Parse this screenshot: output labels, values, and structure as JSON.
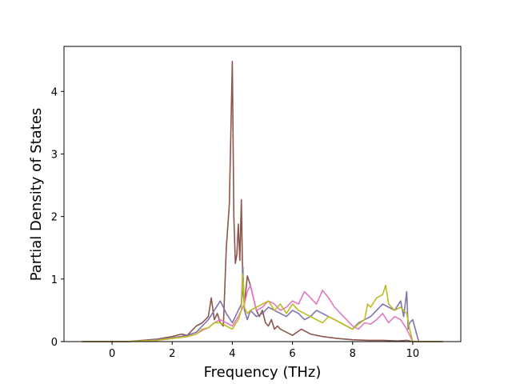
{
  "chart_data": {
    "type": "line",
    "title": "",
    "xlabel": "Frequency (THz)",
    "ylabel": "Partial Density of States",
    "xlim": [
      -1.6,
      11.6
    ],
    "ylim": [
      0,
      4.72
    ],
    "xticks": [
      0,
      2,
      4,
      6,
      8,
      10
    ],
    "yticks": [
      0,
      1,
      2,
      3,
      4
    ],
    "grid": false,
    "legend": "none",
    "series": [
      {
        "color": "#8c564b",
        "x": [
          -1.0,
          0.5,
          1.0,
          1.5,
          2.0,
          2.3,
          2.5,
          2.8,
          3.0,
          3.2,
          3.3,
          3.4,
          3.5,
          3.6,
          3.7,
          3.8,
          3.9,
          4.0,
          4.05,
          4.1,
          4.15,
          4.2,
          4.25,
          4.3,
          4.35,
          4.4,
          4.5,
          4.6,
          4.7,
          4.8,
          4.9,
          5.0,
          5.1,
          5.2,
          5.3,
          5.4,
          5.5,
          5.6,
          5.8,
          6.0,
          6.3,
          6.6,
          7.0,
          7.5,
          8.0,
          8.5,
          9.0,
          9.5,
          9.8,
          10.0,
          11.0
        ],
        "y": [
          0.0,
          0.0,
          0.02,
          0.04,
          0.08,
          0.12,
          0.1,
          0.25,
          0.3,
          0.4,
          0.7,
          0.35,
          0.45,
          0.3,
          0.25,
          1.5,
          2.2,
          4.48,
          2.0,
          1.25,
          1.4,
          1.88,
          1.3,
          2.27,
          0.8,
          0.6,
          1.05,
          0.9,
          0.7,
          0.5,
          0.4,
          0.5,
          0.3,
          0.25,
          0.35,
          0.2,
          0.25,
          0.2,
          0.15,
          0.1,
          0.2,
          0.12,
          0.08,
          0.05,
          0.03,
          0.02,
          0.02,
          0.01,
          0.02,
          0.0,
          0.0
        ]
      },
      {
        "color": "#8172b2",
        "x": [
          -1.0,
          0.5,
          1.0,
          1.5,
          2.0,
          2.5,
          2.8,
          3.0,
          3.2,
          3.4,
          3.6,
          3.8,
          4.0,
          4.1,
          4.2,
          4.3,
          4.35,
          4.4,
          4.5,
          4.6,
          4.8,
          5.0,
          5.2,
          5.4,
          5.6,
          5.8,
          6.0,
          6.2,
          6.4,
          6.6,
          6.8,
          7.0,
          7.2,
          7.4,
          7.6,
          7.8,
          8.0,
          8.2,
          8.4,
          8.6,
          8.8,
          9.0,
          9.2,
          9.4,
          9.6,
          9.7,
          9.8,
          9.85,
          9.9,
          10.0,
          10.2,
          11.0
        ],
        "y": [
          0.0,
          0.0,
          0.01,
          0.03,
          0.06,
          0.1,
          0.15,
          0.25,
          0.35,
          0.5,
          0.65,
          0.45,
          0.3,
          0.4,
          0.5,
          0.6,
          1.2,
          0.5,
          0.35,
          0.5,
          0.4,
          0.45,
          0.55,
          0.5,
          0.45,
          0.4,
          0.5,
          0.45,
          0.35,
          0.4,
          0.5,
          0.45,
          0.4,
          0.35,
          0.3,
          0.25,
          0.2,
          0.3,
          0.35,
          0.4,
          0.5,
          0.6,
          0.55,
          0.5,
          0.65,
          0.4,
          0.8,
          0.2,
          0.3,
          0.35,
          0.0,
          0.0
        ]
      },
      {
        "color": "#e377c2",
        "x": [
          -1.0,
          0.5,
          1.0,
          1.5,
          2.0,
          2.5,
          2.8,
          3.0,
          3.2,
          3.4,
          3.6,
          3.8,
          4.0,
          4.2,
          4.4,
          4.5,
          4.6,
          4.7,
          4.8,
          5.0,
          5.2,
          5.4,
          5.6,
          5.8,
          6.0,
          6.2,
          6.4,
          6.6,
          6.8,
          7.0,
          7.2,
          7.4,
          7.6,
          7.8,
          8.0,
          8.2,
          8.4,
          8.6,
          8.8,
          9.0,
          9.2,
          9.4,
          9.6,
          9.8,
          9.9,
          10.0,
          10.2,
          11.0
        ],
        "y": [
          0.0,
          0.0,
          0.01,
          0.02,
          0.05,
          0.08,
          0.12,
          0.18,
          0.22,
          0.3,
          0.35,
          0.3,
          0.25,
          0.4,
          0.6,
          0.8,
          0.9,
          0.7,
          0.5,
          0.55,
          0.65,
          0.6,
          0.5,
          0.55,
          0.65,
          0.6,
          0.8,
          0.7,
          0.6,
          0.82,
          0.7,
          0.55,
          0.45,
          0.35,
          0.25,
          0.2,
          0.3,
          0.28,
          0.35,
          0.45,
          0.3,
          0.4,
          0.35,
          0.2,
          0.1,
          0.0,
          0.0,
          0.0
        ]
      },
      {
        "color": "#bcbd22",
        "x": [
          -1.0,
          0.5,
          1.0,
          1.5,
          2.0,
          2.5,
          2.8,
          3.0,
          3.2,
          3.4,
          3.6,
          3.8,
          4.0,
          4.1,
          4.2,
          4.3,
          4.35,
          4.4,
          4.5,
          4.6,
          4.8,
          5.0,
          5.2,
          5.4,
          5.6,
          5.8,
          6.0,
          6.2,
          6.4,
          6.6,
          6.8,
          7.0,
          7.2,
          7.4,
          7.6,
          7.8,
          8.0,
          8.2,
          8.4,
          8.5,
          8.6,
          8.8,
          9.0,
          9.1,
          9.2,
          9.4,
          9.6,
          9.8,
          9.9,
          10.0,
          10.2,
          11.0
        ],
        "y": [
          0.0,
          0.0,
          0.01,
          0.02,
          0.05,
          0.08,
          0.12,
          0.2,
          0.22,
          0.3,
          0.3,
          0.25,
          0.2,
          0.28,
          0.35,
          0.5,
          1.08,
          0.55,
          0.45,
          0.5,
          0.55,
          0.6,
          0.65,
          0.5,
          0.6,
          0.45,
          0.6,
          0.5,
          0.45,
          0.4,
          0.35,
          0.3,
          0.4,
          0.35,
          0.3,
          0.25,
          0.2,
          0.28,
          0.35,
          0.6,
          0.55,
          0.7,
          0.75,
          0.9,
          0.6,
          0.5,
          0.55,
          0.45,
          0.2,
          0.0,
          0.0,
          0.0
        ]
      }
    ]
  }
}
